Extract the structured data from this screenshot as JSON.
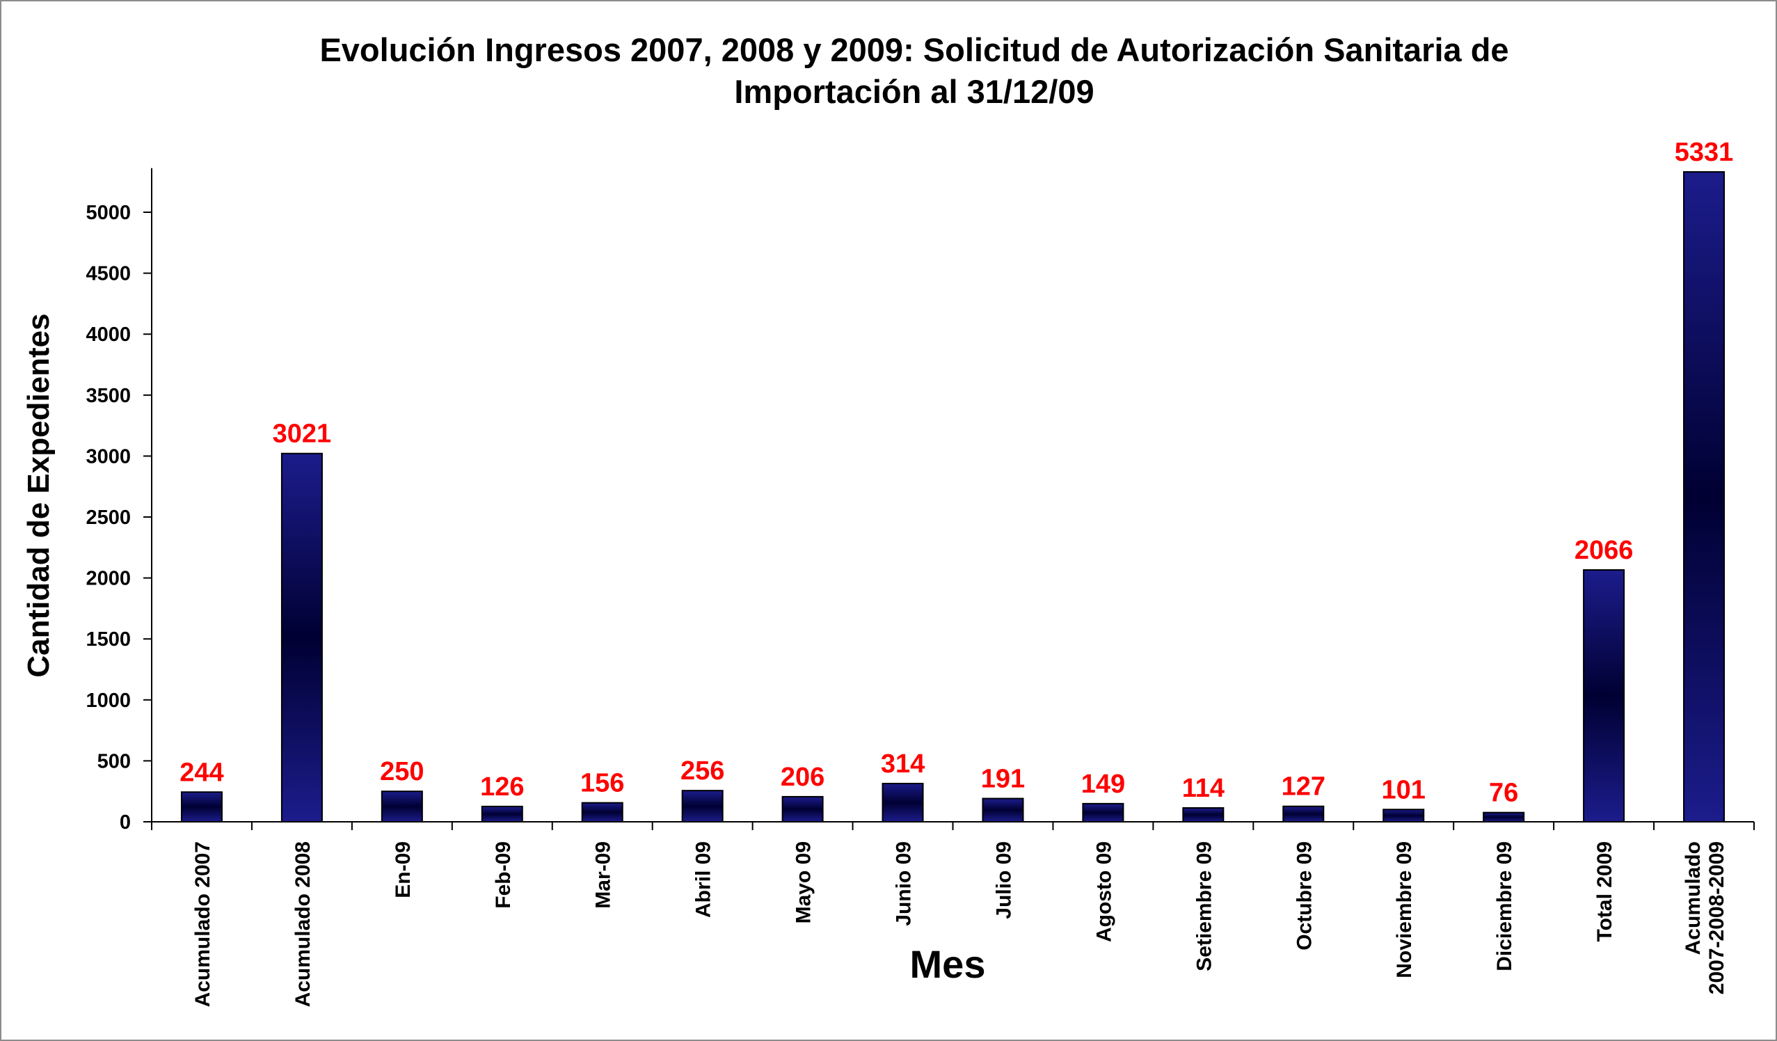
{
  "chart_data": {
    "type": "bar",
    "title_lines": [
      "Evolución Ingresos 2007, 2008 y 2009: Solicitud de Autorización Sanitaria de",
      "Importación al 31/12/09"
    ],
    "xlabel": "Mes",
    "ylabel": "Cantidad de Expedientes",
    "ylim": [
      0,
      5350
    ],
    "yticks": [
      0,
      500,
      1000,
      1500,
      2000,
      2500,
      3000,
      3500,
      4000,
      4500,
      5000
    ],
    "grid": false,
    "legend": "none",
    "categories": [
      "Acumulado 2007",
      "Acumulado 2008",
      "En-09",
      "Feb-09",
      "Mar-09",
      "Abril 09",
      "Mayo 09",
      "Junio 09",
      "Julio 09",
      "Agosto 09",
      "Setiembre 09",
      "Octubre 09",
      "Noviembre 09",
      "Diciembre 09",
      "Total 2009",
      "Acumulado\n2007-2008-2009"
    ],
    "values": [
      244,
      3021,
      250,
      126,
      156,
      256,
      206,
      314,
      191,
      149,
      114,
      127,
      101,
      76,
      2066,
      5331
    ],
    "data_labels": [
      "244",
      "3021",
      "250",
      "126",
      "156",
      "256",
      "206",
      "314",
      "191",
      "149",
      "114",
      "127",
      "101",
      "76",
      "2066",
      "5331"
    ],
    "colors": {
      "bar_edge": "#1c1c8c",
      "bar_center": "#000033",
      "bar_outline": "#000000",
      "data_label": "#ff0000",
      "axis": "#000000",
      "frame": "#8c8c8c"
    }
  }
}
